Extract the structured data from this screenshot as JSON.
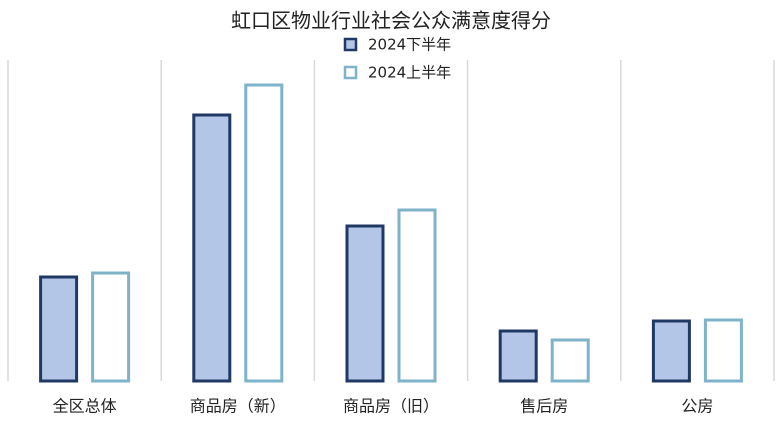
{
  "chart_data": {
    "type": "bar",
    "title": "虹口区物业行业社会公众满意度得分",
    "categories": [
      "全区总体",
      "商品房（新）",
      "商品房（旧）",
      "售后房",
      "公房"
    ],
    "series": [
      {
        "name": "2024下半年",
        "color": "#b4c6e7",
        "values": [
          104,
          266,
          155,
          50,
          60
        ]
      },
      {
        "name": "2024上半年",
        "color": "#ffffff",
        "values": [
          108,
          296,
          171,
          41,
          61
        ]
      }
    ],
    "ylim": [
      0,
      321
    ]
  }
}
